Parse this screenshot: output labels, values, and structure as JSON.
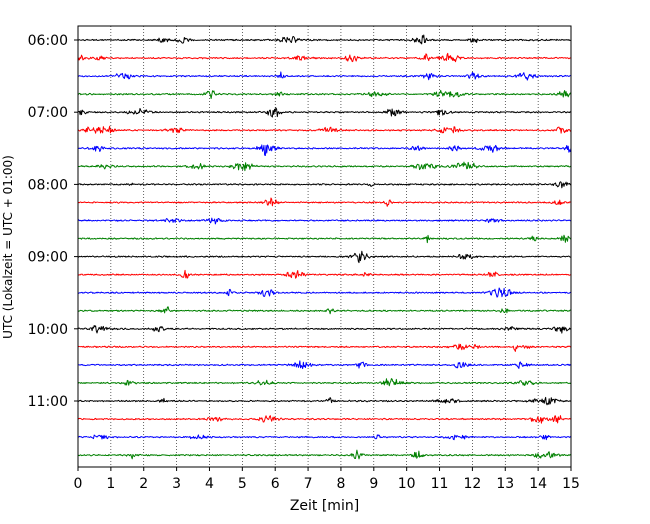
{
  "chart_data": {
    "type": "line",
    "title": "",
    "xlabel": "Zeit  [min]",
    "ylabel": "UTC (Lokalzeit = UTC + 01:00)",
    "xlim": [
      0,
      15
    ],
    "x_ticks": [
      0,
      1,
      2,
      3,
      4,
      5,
      6,
      7,
      8,
      9,
      10,
      11,
      12,
      13,
      14,
      15
    ],
    "x_tick_labels": [
      "0",
      "1",
      "2",
      "3",
      "4",
      "5",
      "6",
      "7",
      "8",
      "9",
      "10",
      "11",
      "12",
      "13",
      "14",
      "15"
    ],
    "y_tick_labels": [
      "06:00",
      "07:00",
      "08:00",
      "09:00",
      "10:00",
      "11:00"
    ],
    "y_tick_times": [
      "06:00",
      "07:00",
      "08:00",
      "09:00",
      "10:00",
      "11:00"
    ],
    "vertical_grid": "dotted",
    "trace_interval_minutes": 15,
    "trace_colors": [
      "#000000",
      "#ff0000",
      "#0000ff",
      "#008000"
    ],
    "series": [
      {
        "start": "06:00",
        "color": "#000000"
      },
      {
        "start": "06:15",
        "color": "#ff0000"
      },
      {
        "start": "06:30",
        "color": "#0000ff"
      },
      {
        "start": "06:45",
        "color": "#008000"
      },
      {
        "start": "07:00",
        "color": "#000000"
      },
      {
        "start": "07:15",
        "color": "#ff0000"
      },
      {
        "start": "07:30",
        "color": "#0000ff"
      },
      {
        "start": "07:45",
        "color": "#008000"
      },
      {
        "start": "08:00",
        "color": "#000000"
      },
      {
        "start": "08:15",
        "color": "#ff0000"
      },
      {
        "start": "08:30",
        "color": "#0000ff"
      },
      {
        "start": "08:45",
        "color": "#008000"
      },
      {
        "start": "09:00",
        "color": "#000000"
      },
      {
        "start": "09:15",
        "color": "#ff0000"
      },
      {
        "start": "09:30",
        "color": "#0000ff"
      },
      {
        "start": "09:45",
        "color": "#008000"
      },
      {
        "start": "10:00",
        "color": "#000000"
      },
      {
        "start": "10:15",
        "color": "#ff0000"
      },
      {
        "start": "10:30",
        "color": "#0000ff"
      },
      {
        "start": "10:45",
        "color": "#008000"
      },
      {
        "start": "11:00",
        "color": "#000000"
      },
      {
        "start": "11:15",
        "color": "#ff0000"
      },
      {
        "start": "11:30",
        "color": "#0000ff"
      },
      {
        "start": "11:45",
        "color": "#008000"
      }
    ]
  }
}
